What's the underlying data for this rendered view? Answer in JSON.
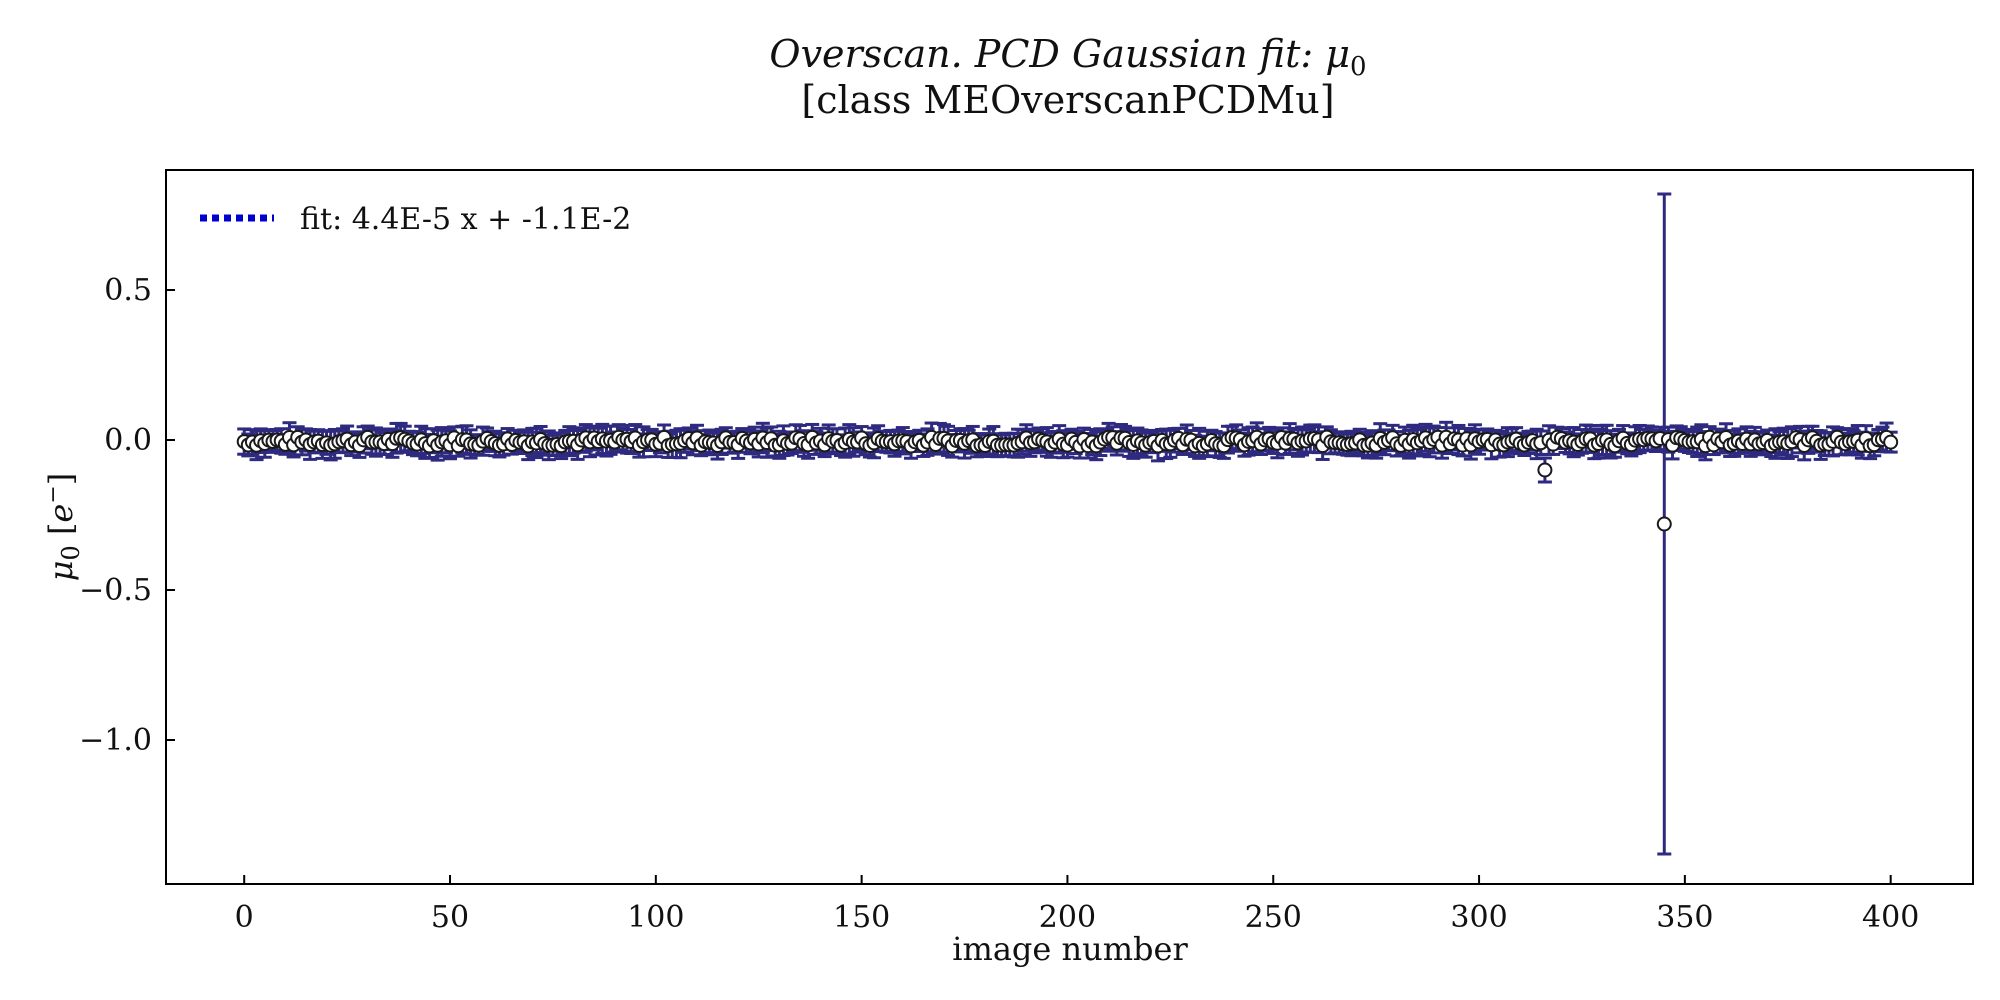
{
  "chart_data": {
    "type": "scatter",
    "title": "Overscan. PCD Gaussian fit: μ0",
    "title_parts": {
      "italic": "Overscan. PCD Gaussian fit: ",
      "symbol": "μ",
      "subscript": "0"
    },
    "subtitle": "[class MEOverscanPCDMu]",
    "xlabel": "image number",
    "ylabel": "μ0 [e−]",
    "ylabel_parts": {
      "symbol": "μ",
      "subscript": "0",
      "unit_open": " [",
      "unit": "e",
      "unit_sup": "−",
      "unit_close": "]"
    },
    "xlim": [
      -19,
      420
    ],
    "ylim": [
      -1.48,
      0.9
    ],
    "xticks": [
      0,
      50,
      100,
      150,
      200,
      250,
      300,
      350,
      400
    ],
    "yticks": [
      0.5,
      0.0,
      -0.5,
      -1.0
    ],
    "ytick_labels": [
      "0.5",
      "0.0",
      "−0.5",
      "−1.0"
    ],
    "grid": false,
    "legend": {
      "placement": "top-left",
      "label": "fit: 4.4E-5 x + -1.1E-2"
    },
    "fit": {
      "slope": 4.4e-05,
      "intercept": -0.011,
      "color": "#0000cc",
      "style": "dotted"
    },
    "errorbar_color": "#2e2a80",
    "marker_face": "#ffffff",
    "marker_edge": "#1a1a1a",
    "n_points": 401,
    "x_range": [
      0,
      400
    ],
    "typical_value_range": [
      -0.02,
      0.01
    ],
    "typical_error": 0.04,
    "outliers": [
      {
        "x": 316,
        "y": -0.1,
        "err": 0.04
      },
      {
        "x": 345,
        "y": -0.28,
        "err": 1.1
      }
    ]
  }
}
